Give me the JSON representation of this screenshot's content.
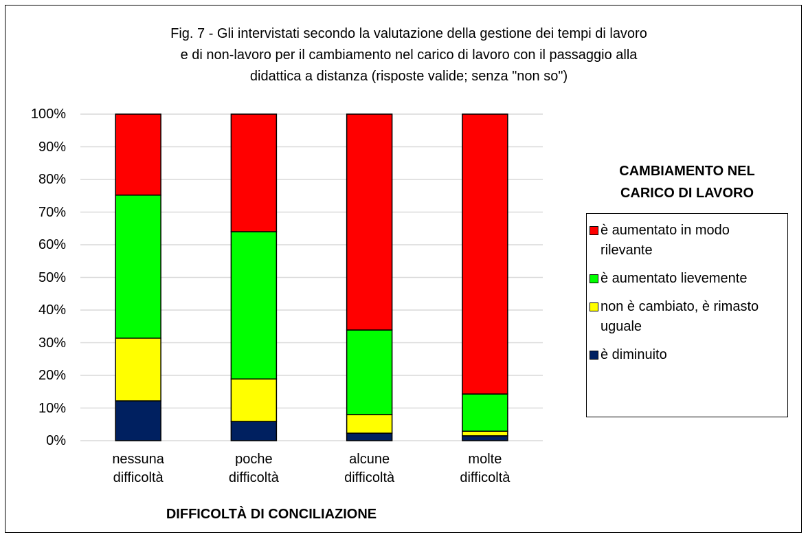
{
  "chart_data": {
    "type": "stacked_bar",
    "title": "Fig. 7 - Gli intervistati secondo la valutazione della gestione dei tempi di lavoro\ne di non-lavoro  per il cambiamento nel carico di lavoro con il passaggio alla\ndidattica a distanza (risposte valide; senza \"non so\")",
    "xlabel": "DIFFICOLTÀ DI CONCILIAZIONE",
    "legend_title": "CAMBIAMENTO NEL\nCARICO DI LAVORO",
    "legend_position": "right",
    "categories": [
      "nessuna\ndifficoltà",
      "poche\ndifficoltà",
      "alcune\ndifficoltà",
      "molte\ndifficoltà"
    ],
    "series": [
      {
        "name": "è diminuito",
        "color": "#002060",
        "values": [
          12.2,
          5.9,
          2.3,
          1.5
        ]
      },
      {
        "name": "non è cambiato, è rimasto uguale",
        "color": "#ffff00",
        "values": [
          19.2,
          13.0,
          5.7,
          1.4
        ]
      },
      {
        "name": "è aumentato lievemente",
        "color": "#00ff00",
        "values": [
          43.8,
          45.1,
          25.9,
          11.4
        ]
      },
      {
        "name": "è aumentato in modo rilevante",
        "color": "#ff0000",
        "values": [
          24.8,
          36.0,
          66.1,
          85.7
        ]
      }
    ],
    "ylim": [
      0,
      100
    ],
    "yticks": [
      {
        "value": 0,
        "label": "0%"
      },
      {
        "value": 10,
        "label": "10%"
      },
      {
        "value": 20,
        "label": "20%"
      },
      {
        "value": 30,
        "label": "30%"
      },
      {
        "value": 40,
        "label": "40%"
      },
      {
        "value": 50,
        "label": "50%"
      },
      {
        "value": 60,
        "label": "60%"
      },
      {
        "value": 70,
        "label": "70%"
      },
      {
        "value": 80,
        "label": "80%"
      },
      {
        "value": 90,
        "label": "90%"
      },
      {
        "value": 100,
        "label": "100%"
      }
    ],
    "grid": true
  }
}
